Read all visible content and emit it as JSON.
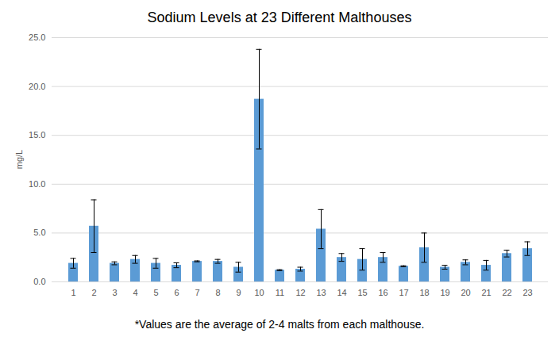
{
  "chart_data": {
    "type": "bar",
    "title": "Sodium Levels at 23 Different Malthouses",
    "y_label": "mg/L",
    "caption": "*Values are the average of 2-4 malts from each malthouse.",
    "categories": [
      "1",
      "2",
      "3",
      "4",
      "5",
      "6",
      "7",
      "8",
      "9",
      "10",
      "11",
      "12",
      "13",
      "14",
      "15",
      "16",
      "17",
      "18",
      "19",
      "20",
      "21",
      "22",
      "23"
    ],
    "values": [
      1.9,
      5.7,
      1.9,
      2.3,
      1.9,
      1.7,
      2.1,
      2.1,
      1.5,
      18.7,
      1.2,
      1.3,
      5.4,
      2.5,
      2.3,
      2.5,
      1.6,
      3.5,
      1.5,
      2.0,
      1.7,
      2.9,
      3.4
    ],
    "errors": [
      0.5,
      2.7,
      0.15,
      0.4,
      0.5,
      0.25,
      0.05,
      0.2,
      0.5,
      5.1,
      0.05,
      0.2,
      2.0,
      0.4,
      1.1,
      0.5,
      0.05,
      1.5,
      0.2,
      0.25,
      0.5,
      0.35,
      0.7
    ],
    "color": "#5b9bd5",
    "ylim": [
      0,
      25
    ],
    "yticks": [
      {
        "value": 0,
        "label": "0.0"
      },
      {
        "value": 5,
        "label": "5.0"
      },
      {
        "value": 10,
        "label": "10.0"
      },
      {
        "value": 15,
        "label": "15.0"
      },
      {
        "value": 20,
        "label": "20.0"
      },
      {
        "value": 25,
        "label": "25.0"
      }
    ],
    "grid": true
  }
}
